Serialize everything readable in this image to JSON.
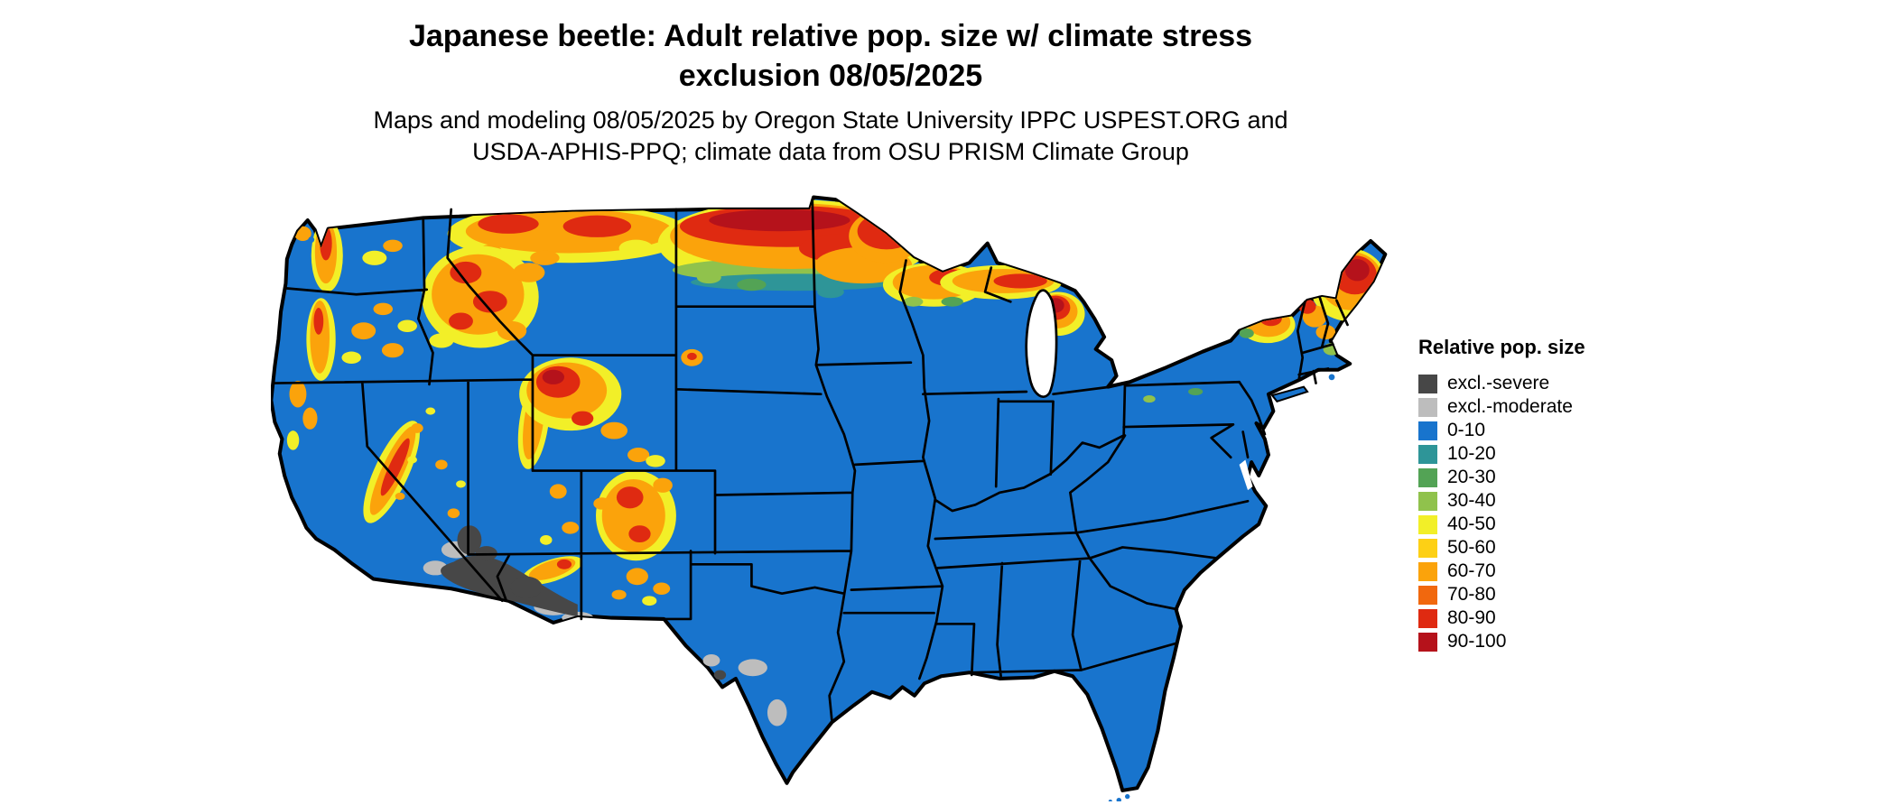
{
  "title": {
    "line1": "Japanese beetle: Adult relative pop. size w/ climate stress",
    "line2": "exclusion 08/05/2025"
  },
  "subtitle": {
    "line1": "Maps and modeling 08/05/2025 by Oregon State University IPPC USPEST.ORG and",
    "line2": "USDA-APHIS-PPQ; climate data from OSU PRISM Climate Group"
  },
  "map": {
    "region": "Continental United States",
    "type": "raster choropleth with state boundaries",
    "base_color": "#1874cd",
    "border_color": "#000000",
    "background_color": "#ffffff"
  },
  "legend": {
    "title": "Relative pop. size",
    "entries": [
      {
        "label": "excl.-severe",
        "color": "#474747"
      },
      {
        "label": "excl.-moderate",
        "color": "#bdbdbd"
      },
      {
        "label": "0-10",
        "color": "#1874cd"
      },
      {
        "label": "10-20",
        "color": "#2e9598"
      },
      {
        "label": "20-30",
        "color": "#53a355"
      },
      {
        "label": "30-40",
        "color": "#90c24c"
      },
      {
        "label": "40-50",
        "color": "#f2ef28"
      },
      {
        "label": "50-60",
        "color": "#fdd015"
      },
      {
        "label": "60-70",
        "color": "#fba30b"
      },
      {
        "label": "70-80",
        "color": "#f1680e"
      },
      {
        "label": "80-90",
        "color": "#df2a11"
      },
      {
        "label": "90-100",
        "color": "#b5121b"
      }
    ]
  }
}
